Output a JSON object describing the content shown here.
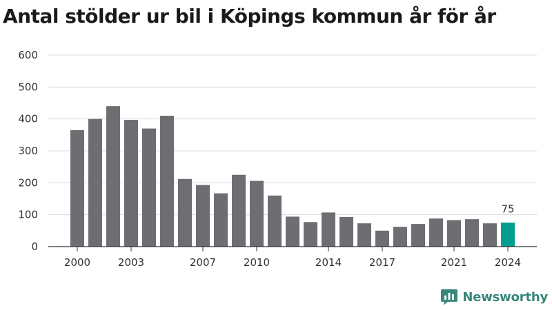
{
  "title": "Antal stölder ur bil i Köpings kommun år för år",
  "logo": {
    "text": "Newsworthy",
    "icon": "speech-bubble-bar-chart-icon",
    "color": "#37877a"
  },
  "colors": {
    "bar": "#6e6d72",
    "highlight": "#009e8e",
    "grid": "#d9d9d9",
    "axis": "#333333"
  },
  "chart_data": {
    "type": "bar",
    "title": "Antal stölder ur bil i Köpings kommun år för år",
    "xlabel": "",
    "ylabel": "",
    "categories": [
      2000,
      2001,
      2002,
      2003,
      2004,
      2005,
      2006,
      2007,
      2008,
      2009,
      2010,
      2011,
      2012,
      2013,
      2014,
      2015,
      2016,
      2017,
      2018,
      2019,
      2020,
      2021,
      2022,
      2023,
      2024
    ],
    "values": [
      365,
      400,
      440,
      397,
      370,
      410,
      212,
      193,
      167,
      225,
      206,
      160,
      94,
      77,
      107,
      93,
      73,
      50,
      62,
      71,
      88,
      83,
      86,
      73,
      75
    ],
    "xticks": [
      2000,
      2003,
      2007,
      2010,
      2014,
      2017,
      2021,
      2024
    ],
    "yticks": [
      0,
      100,
      200,
      300,
      400,
      500,
      600
    ],
    "ylim": [
      0,
      600
    ],
    "grid": "horizontal",
    "highlight": {
      "category": 2024,
      "label": "75"
    }
  }
}
